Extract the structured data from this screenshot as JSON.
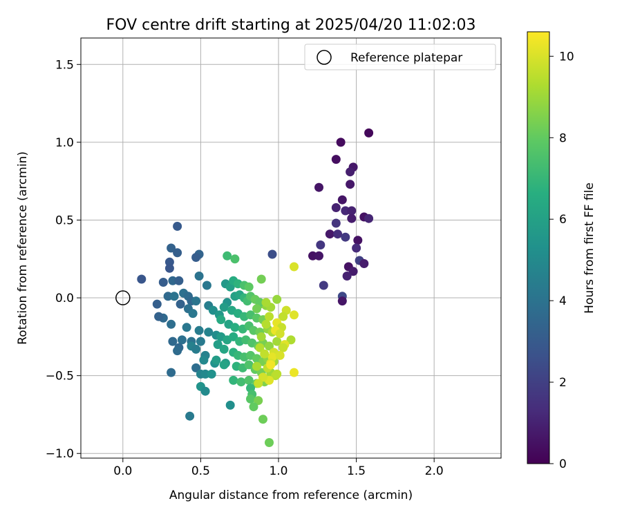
{
  "chart_data": {
    "type": "scatter",
    "title": "FOV centre drift starting at 2025/04/20 11:02:03",
    "xlabel": "Angular distance from reference (arcmin)",
    "ylabel": "Rotation from reference (arcmin)",
    "xlim": [
      -0.27,
      2.43
    ],
    "ylim": [
      -1.03,
      1.67
    ],
    "xticks": [
      0.0,
      0.5,
      1.0,
      1.5,
      2.0
    ],
    "xtick_labels": [
      "0.0",
      "0.5",
      "1.0",
      "1.5",
      "2.0"
    ],
    "yticks": [
      -1.0,
      -0.5,
      0.0,
      0.5,
      1.0,
      1.5
    ],
    "ytick_labels": [
      "−1.0",
      "−0.5",
      "0.0",
      "0.5",
      "1.0",
      "1.5"
    ],
    "grid": true,
    "legend": {
      "position": "top-right",
      "entries": [
        "Reference platepar"
      ]
    },
    "colorbar": {
      "label": "Hours from first FF file",
      "colormap": "viridis",
      "range": [
        0,
        10.6
      ],
      "ticks": [
        0,
        2,
        4,
        6,
        8,
        10
      ],
      "tick_labels": [
        "0",
        "2",
        "4",
        "6",
        "8",
        "10"
      ]
    },
    "reference_point": {
      "x": 0.0,
      "y": 0.0
    },
    "points": [
      [
        1.4,
        1.0,
        0.3
      ],
      [
        1.58,
        1.06,
        0.2
      ],
      [
        1.37,
        0.89,
        0.4
      ],
      [
        1.26,
        0.71,
        0.6
      ],
      [
        1.48,
        0.84,
        0.7
      ],
      [
        1.46,
        0.81,
        0.9
      ],
      [
        1.46,
        0.73,
        0.7
      ],
      [
        1.41,
        0.63,
        0.6
      ],
      [
        1.37,
        0.58,
        1.0
      ],
      [
        1.43,
        0.56,
        1.2
      ],
      [
        1.47,
        0.56,
        1.0
      ],
      [
        1.47,
        0.51,
        0.8
      ],
      [
        1.55,
        0.52,
        0.5
      ],
      [
        1.58,
        0.51,
        1.1
      ],
      [
        1.37,
        0.48,
        1.6
      ],
      [
        1.33,
        0.41,
        0.7
      ],
      [
        1.38,
        0.41,
        1.4
      ],
      [
        1.43,
        0.39,
        1.8
      ],
      [
        1.51,
        0.37,
        0.5
      ],
      [
        1.27,
        0.34,
        1.7
      ],
      [
        1.5,
        0.32,
        1.3
      ],
      [
        1.22,
        0.27,
        0.5
      ],
      [
        1.26,
        0.27,
        0.6
      ],
      [
        1.52,
        0.24,
        2.0
      ],
      [
        1.55,
        0.22,
        0.8
      ],
      [
        1.45,
        0.2,
        0.5
      ],
      [
        1.48,
        0.17,
        0.8
      ],
      [
        1.44,
        0.14,
        1.0
      ],
      [
        1.29,
        0.08,
        1.8
      ],
      [
        1.41,
        0.01,
        2.3
      ],
      [
        1.41,
        -0.02,
        0.6
      ],
      [
        0.35,
        0.46,
        3.0
      ],
      [
        0.31,
        0.32,
        3.3
      ],
      [
        0.35,
        0.29,
        3.2
      ],
      [
        0.49,
        0.28,
        3.4
      ],
      [
        0.47,
        0.26,
        3.1
      ],
      [
        0.3,
        0.23,
        2.9
      ],
      [
        0.3,
        0.19,
        2.8
      ],
      [
        0.12,
        0.12,
        2.8
      ],
      [
        0.26,
        0.1,
        3.1
      ],
      [
        0.32,
        0.11,
        3.5
      ],
      [
        0.36,
        0.11,
        3.2
      ],
      [
        0.49,
        0.14,
        4.0
      ],
      [
        0.54,
        0.08,
        4.2
      ],
      [
        0.96,
        0.28,
        2.5
      ],
      [
        0.29,
        0.01,
        3.6
      ],
      [
        0.33,
        0.01,
        4.0
      ],
      [
        0.39,
        0.03,
        3.9
      ],
      [
        0.42,
        0.01,
        3.7
      ],
      [
        0.44,
        -0.02,
        3.5
      ],
      [
        0.37,
        -0.04,
        3.3
      ],
      [
        0.22,
        -0.04,
        3.2
      ],
      [
        0.47,
        -0.02,
        4.1
      ],
      [
        0.55,
        -0.05,
        4.5
      ],
      [
        0.58,
        -0.08,
        5.2
      ],
      [
        0.62,
        -0.11,
        5.6
      ],
      [
        0.42,
        -0.07,
        3.9
      ],
      [
        0.45,
        -0.1,
        4.2
      ],
      [
        0.26,
        -0.13,
        3.6
      ],
      [
        0.23,
        -0.12,
        3.3
      ],
      [
        0.31,
        -0.17,
        3.8
      ],
      [
        0.41,
        -0.19,
        4.2
      ],
      [
        0.49,
        -0.21,
        4.4
      ],
      [
        0.55,
        -0.22,
        4.7
      ],
      [
        0.6,
        -0.24,
        5.1
      ],
      [
        0.38,
        -0.27,
        3.9
      ],
      [
        0.32,
        -0.28,
        3.6
      ],
      [
        0.44,
        -0.28,
        4.0
      ],
      [
        0.5,
        -0.28,
        4.3
      ],
      [
        0.44,
        -0.31,
        4.6
      ],
      [
        0.47,
        -0.33,
        4.4
      ],
      [
        0.36,
        -0.32,
        3.5
      ],
      [
        0.35,
        -0.34,
        3.7
      ],
      [
        0.53,
        -0.37,
        4.6
      ],
      [
        0.52,
        -0.4,
        4.9
      ],
      [
        0.59,
        -0.42,
        5.3
      ],
      [
        0.66,
        -0.42,
        5.8
      ],
      [
        0.47,
        -0.45,
        3.8
      ],
      [
        0.31,
        -0.48,
        3.7
      ],
      [
        0.5,
        -0.49,
        4.7
      ],
      [
        0.53,
        -0.49,
        4.9
      ],
      [
        0.57,
        -0.49,
        5.3
      ],
      [
        0.5,
        -0.57,
        5.4
      ],
      [
        0.53,
        -0.6,
        5.0
      ],
      [
        0.43,
        -0.76,
        4.3
      ],
      [
        0.69,
        -0.69,
        5.2
      ],
      [
        0.67,
        0.27,
        7.2
      ],
      [
        0.72,
        0.25,
        7.5
      ],
      [
        0.66,
        0.09,
        5.6
      ],
      [
        0.69,
        0.07,
        6.0
      ],
      [
        0.71,
        0.11,
        6.5
      ],
      [
        0.74,
        0.09,
        6.8
      ],
      [
        0.78,
        0.08,
        7.5
      ],
      [
        0.81,
        0.07,
        7.9
      ],
      [
        0.89,
        0.12,
        8.3
      ],
      [
        0.72,
        0.01,
        6.0
      ],
      [
        0.75,
        0.02,
        6.2
      ],
      [
        0.78,
        0.0,
        6.9
      ],
      [
        0.8,
        -0.02,
        7.3
      ],
      [
        0.82,
        0.01,
        7.7
      ],
      [
        0.85,
        -0.01,
        8.1
      ],
      [
        0.88,
        -0.04,
        8.4
      ],
      [
        0.92,
        -0.05,
        8.8
      ],
      [
        0.95,
        -0.06,
        9.1
      ],
      [
        0.67,
        -0.03,
        5.4
      ],
      [
        0.65,
        -0.06,
        5.8
      ],
      [
        0.7,
        -0.08,
        6.3
      ],
      [
        0.74,
        -0.1,
        6.6
      ],
      [
        0.78,
        -0.12,
        7.0
      ],
      [
        0.82,
        -0.11,
        7.4
      ],
      [
        0.86,
        -0.13,
        7.8
      ],
      [
        0.9,
        -0.14,
        8.3
      ],
      [
        0.63,
        -0.14,
        6.4
      ],
      [
        0.68,
        -0.17,
        6.1
      ],
      [
        0.72,
        -0.19,
        6.6
      ],
      [
        0.77,
        -0.2,
        7.0
      ],
      [
        0.81,
        -0.18,
        7.4
      ],
      [
        0.84,
        -0.21,
        7.8
      ],
      [
        0.88,
        -0.22,
        8.2
      ],
      [
        0.93,
        -0.2,
        8.8
      ],
      [
        0.96,
        -0.22,
        9.2
      ],
      [
        0.63,
        -0.25,
        5.7
      ],
      [
        0.67,
        -0.27,
        6.2
      ],
      [
        0.71,
        -0.25,
        6.5
      ],
      [
        0.75,
        -0.28,
        6.9
      ],
      [
        0.79,
        -0.27,
        7.3
      ],
      [
        0.83,
        -0.29,
        7.6
      ],
      [
        0.87,
        -0.31,
        8.0
      ],
      [
        0.9,
        -0.29,
        8.4
      ],
      [
        0.94,
        -0.31,
        8.8
      ],
      [
        0.99,
        -0.28,
        9.1
      ],
      [
        0.61,
        -0.3,
        5.9
      ],
      [
        0.65,
        -0.33,
        6.2
      ],
      [
        0.71,
        -0.35,
        6.7
      ],
      [
        0.74,
        -0.37,
        7.0
      ],
      [
        0.78,
        -0.38,
        7.4
      ],
      [
        0.82,
        -0.37,
        7.7
      ],
      [
        0.86,
        -0.39,
        8.0
      ],
      [
        0.9,
        -0.41,
        8.4
      ],
      [
        0.93,
        -0.39,
        8.7
      ],
      [
        0.97,
        -0.41,
        9.1
      ],
      [
        0.6,
        -0.4,
        5.8
      ],
      [
        0.65,
        -0.43,
        6.1
      ],
      [
        0.73,
        -0.44,
        6.8
      ],
      [
        0.77,
        -0.45,
        7.2
      ],
      [
        0.81,
        -0.43,
        7.6
      ],
      [
        0.85,
        -0.46,
        8.0
      ],
      [
        0.89,
        -0.48,
        8.3
      ],
      [
        0.95,
        -0.48,
        9.0
      ],
      [
        0.98,
        -0.5,
        9.4
      ],
      [
        0.71,
        -0.53,
        6.9
      ],
      [
        0.76,
        -0.54,
        7.3
      ],
      [
        0.81,
        -0.53,
        7.6
      ],
      [
        0.86,
        -0.55,
        8.0
      ],
      [
        0.91,
        -0.54,
        8.5
      ],
      [
        0.93,
        -0.52,
        9.0
      ],
      [
        0.82,
        -0.58,
        7.0
      ],
      [
        0.83,
        -0.62,
        7.4
      ],
      [
        0.82,
        -0.65,
        7.8
      ],
      [
        0.87,
        -0.66,
        8.4
      ],
      [
        0.84,
        -0.7,
        8.0
      ],
      [
        0.9,
        -0.78,
        8.2
      ],
      [
        0.94,
        -0.93,
        8.2
      ],
      [
        0.88,
        -0.03,
        8.0
      ],
      [
        0.86,
        -0.07,
        8.3
      ],
      [
        1.1,
        0.2,
        10.0
      ],
      [
        1.05,
        -0.08,
        9.8
      ],
      [
        1.1,
        -0.11,
        10.1
      ],
      [
        1.03,
        -0.12,
        9.6
      ],
      [
        0.99,
        -0.16,
        10.2
      ],
      [
        1.02,
        -0.19,
        9.7
      ],
      [
        0.98,
        -0.21,
        10.3
      ],
      [
        1.01,
        -0.23,
        9.9
      ],
      [
        1.08,
        -0.27,
        9.3
      ],
      [
        1.04,
        -0.3,
        10.1
      ],
      [
        1.03,
        -0.32,
        9.7
      ],
      [
        0.97,
        -0.35,
        9.9
      ],
      [
        0.96,
        -0.38,
        10.2
      ],
      [
        0.95,
        -0.42,
        10.0
      ],
      [
        0.93,
        -0.45,
        9.6
      ],
      [
        0.99,
        -0.49,
        9.5
      ],
      [
        1.1,
        -0.48,
        10.3
      ],
      [
        0.94,
        -0.53,
        10.1
      ],
      [
        0.9,
        -0.51,
        9.9
      ],
      [
        0.87,
        -0.55,
        9.7
      ],
      [
        0.95,
        -0.43,
        10.4
      ],
      [
        1.01,
        -0.37,
        10.0
      ],
      [
        0.92,
        -0.17,
        9.4
      ],
      [
        0.89,
        -0.25,
        9.1
      ],
      [
        0.94,
        -0.12,
        9.5
      ],
      [
        0.92,
        -0.03,
        9.2
      ],
      [
        0.99,
        -0.01,
        8.9
      ],
      [
        0.88,
        -0.32,
        9.4
      ],
      [
        0.91,
        -0.36,
        9.6
      ],
      [
        0.86,
        -0.44,
        9.2
      ]
    ]
  }
}
